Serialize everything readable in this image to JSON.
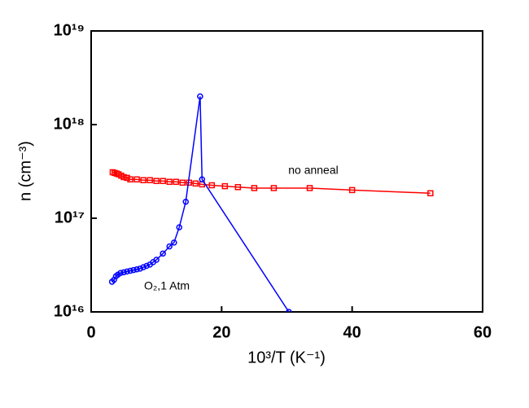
{
  "chart_data": {
    "type": "line",
    "x_label": "10³/T (K⁻¹)",
    "y_label": "n (cm⁻³)",
    "xlim": [
      0,
      60
    ],
    "xticks": [
      0,
      20,
      40,
      60
    ],
    "ylim": [
      1e+16,
      1e+19
    ],
    "yticks": [
      {
        "value": 1e+16,
        "label": "10¹⁶"
      },
      {
        "value": 1e+17,
        "label": "10¹⁷"
      },
      {
        "value": 1e+18,
        "label": "10¹⁸"
      },
      {
        "value": 1e+19,
        "label": "10¹⁹"
      }
    ],
    "y_scale": "log",
    "series": [
      {
        "name": "no anneal",
        "color": "#ff0000",
        "marker": "square",
        "x": [
          3.3,
          3.6,
          3.9,
          4.2,
          4.6,
          5,
          5.5,
          6,
          7,
          8,
          9,
          10,
          11,
          12,
          13,
          14,
          15,
          16,
          17,
          18.5,
          20.5,
          22.5,
          25,
          28,
          33.5,
          40,
          52
        ],
        "values": [
          3.1e+17,
          3.05e+17,
          3e+17,
          2.95e+17,
          2.85e+17,
          2.75e+17,
          2.7e+17,
          2.6e+17,
          2.6e+17,
          2.55e+17,
          2.55e+17,
          2.5e+17,
          2.5e+17,
          2.45e+17,
          2.45e+17,
          2.4e+17,
          2.4e+17,
          2.35e+17,
          2.3e+17,
          2.25e+17,
          2.2e+17,
          2.15e+17,
          2.1e+17,
          2.1e+17,
          2.1e+17,
          2e+17,
          1.85e+17
        ]
      },
      {
        "name": "O₂,1 Atm",
        "color": "#0000ff",
        "marker": "circle",
        "x": [
          3.2,
          3.5,
          3.8,
          4.1,
          4.5,
          5,
          5.5,
          6,
          6.5,
          7,
          7.5,
          8,
          8.5,
          9,
          9.5,
          10,
          11,
          12,
          12.7,
          13.5,
          14.5,
          16.7,
          17,
          30.3
        ],
        "values": [
          2.1e+16,
          2.2e+16,
          2.4e+16,
          2.5e+16,
          2.6e+16,
          2.65e+16,
          2.7e+16,
          2.75e+16,
          2.8e+16,
          2.85e+16,
          2.9e+16,
          3e+16,
          3.1e+16,
          3.2e+16,
          3.4e+16,
          3.6e+16,
          4.2e+16,
          5e+16,
          5.5e+16,
          8e+16,
          1.5e+17,
          2e+18,
          2.6e+17,
          1e+16
        ]
      }
    ]
  }
}
